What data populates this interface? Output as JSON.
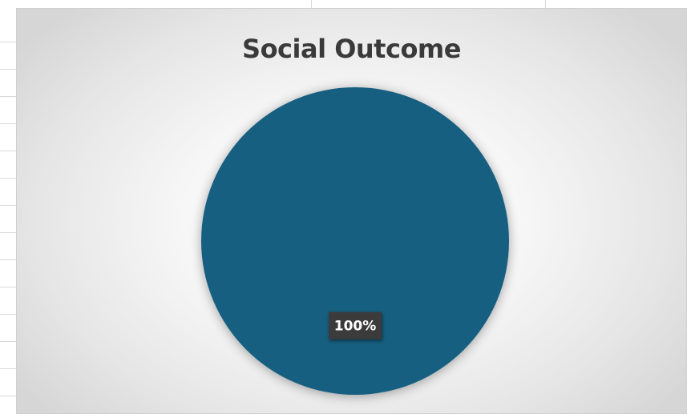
{
  "chart_data": {
    "type": "pie",
    "title": "Social Outcome",
    "categories": [
      ""
    ],
    "values": [
      100
    ],
    "data_labels": [
      "100%"
    ],
    "colors": [
      "#185e80"
    ],
    "label_bg_color": "#3b3b3b",
    "label_text_color": "#ffffff",
    "legend": "none"
  }
}
